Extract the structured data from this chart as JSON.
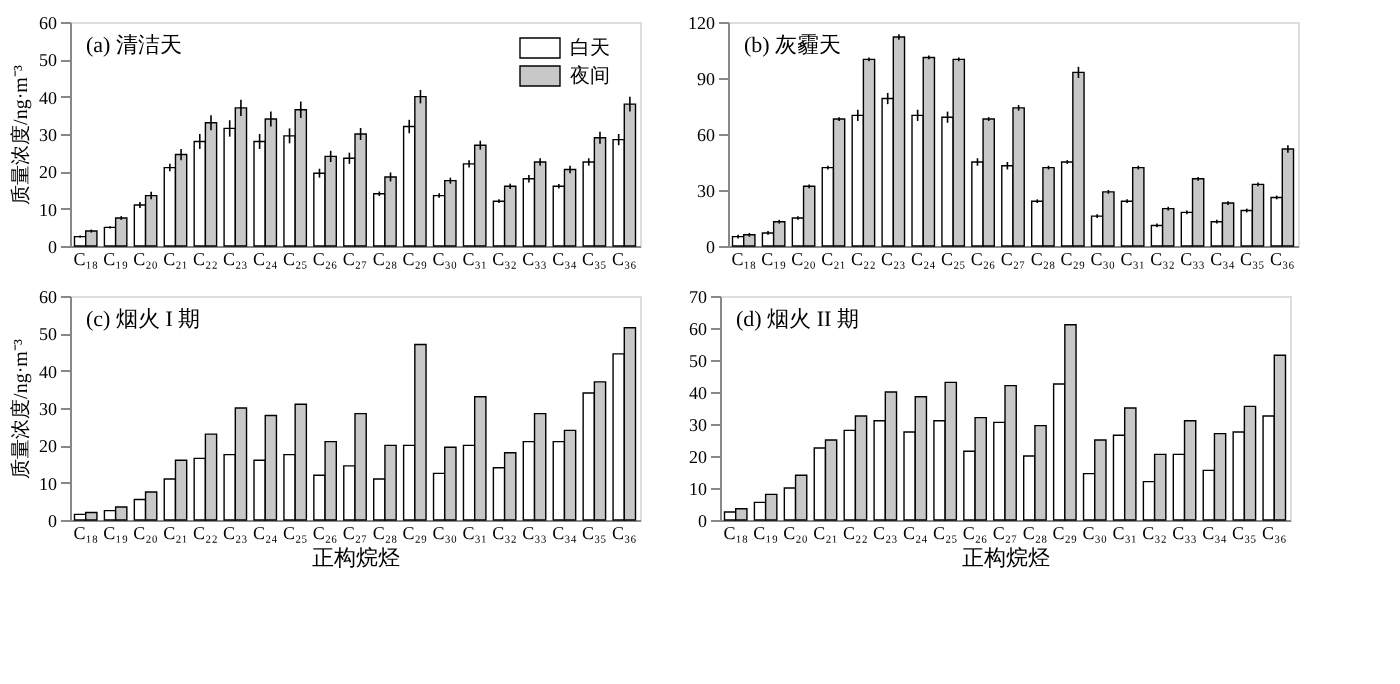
{
  "chart_data": [
    {
      "type": "bar",
      "title": "(a) 清洁天",
      "ylabel": "质量浓度/ng·m⁻³",
      "categories": [
        "C₁₈",
        "C₁₉",
        "C₂₀",
        "C₂₁",
        "C₂₂",
        "C₂₃",
        "C₂₄",
        "C₂₅",
        "C₂₆",
        "C₂₇",
        "C₂₈",
        "C₂₉",
        "C₃₀",
        "C₃₁",
        "C₃₂",
        "C₃₃",
        "C₃₄",
        "C₃₅",
        "C₃₆"
      ],
      "ylim": [
        0,
        60
      ],
      "yticks": [
        0,
        10,
        20,
        30,
        40,
        50,
        60
      ],
      "grid": false,
      "legend": "top right",
      "series": [
        {
          "name": "白天",
          "color": "#ffffff",
          "values": [
            2.5,
            5,
            11,
            21,
            28,
            31.5,
            28,
            29.5,
            19.5,
            23.5,
            14,
            32,
            13.5,
            22,
            12,
            18,
            16,
            22.5,
            28.5
          ],
          "errors": [
            0.3,
            0.3,
            0.8,
            1,
            2,
            2.2,
            2,
            2,
            1.2,
            1.5,
            0.6,
            1.8,
            0.6,
            1,
            0.5,
            1,
            0.6,
            1,
            1.5
          ]
        },
        {
          "name": "夜间",
          "color": "#c8c8c8",
          "values": [
            4,
            7.5,
            13.5,
            24.5,
            33,
            37,
            34,
            36.5,
            24,
            30,
            18.5,
            40,
            17.5,
            27,
            16,
            22.5,
            20.5,
            29,
            38
          ],
          "errors": [
            0.4,
            0.5,
            1,
            1.5,
            2,
            2.2,
            2,
            2.2,
            1.5,
            1.6,
            1.2,
            1.8,
            0.8,
            1.2,
            0.7,
            1,
            1,
            1.6,
            2
          ]
        }
      ]
    },
    {
      "type": "bar",
      "title": "(b) 灰霾天",
      "categories": [
        "C₁₈",
        "C₁₉",
        "C₂₀",
        "C₂₁",
        "C₂₂",
        "C₂₃",
        "C₂₄",
        "C₂₅",
        "C₂₆",
        "C₂₇",
        "C₂₈",
        "C₂₉",
        "C₃₀",
        "C₃₁",
        "C₃₂",
        "C₃₃",
        "C₃₄",
        "C₃₅",
        "C₃₆"
      ],
      "ylim": [
        0,
        120
      ],
      "yticks": [
        0,
        30,
        60,
        90,
        120
      ],
      "grid": false,
      "series": [
        {
          "color": "#ffffff",
          "values": [
            5,
            7,
            15,
            42,
            70,
            79,
            70,
            69,
            45,
            43,
            24,
            45,
            16,
            24,
            11,
            18,
            13,
            19,
            26
          ],
          "errors": [
            1,
            1,
            1,
            1,
            3,
            3,
            3,
            3,
            2,
            2,
            1,
            1,
            1,
            1,
            1,
            1,
            1,
            1,
            1
          ]
        },
        {
          "color": "#c8c8c8",
          "values": [
            6,
            13,
            32,
            68,
            100,
            112,
            101,
            100,
            68,
            74,
            42,
            93,
            29,
            42,
            20,
            36,
            23,
            33,
            52
          ],
          "errors": [
            1,
            1,
            1,
            1,
            1,
            1.5,
            1,
            1,
            1,
            1.5,
            1,
            3,
            1,
            1,
            1,
            1,
            1,
            1,
            2
          ]
        }
      ]
    },
    {
      "type": "bar",
      "title": "(c) 烟火 I 期",
      "ylabel": "质量浓度/ng·m⁻³",
      "xlabel": "正构烷烃",
      "categories": [
        "C₁₈",
        "C₁₉",
        "C₂₀",
        "C₂₁",
        "C₂₂",
        "C₂₃",
        "C₂₄",
        "C₂₅",
        "C₂₆",
        "C₂₇",
        "C₂₈",
        "C₂₉",
        "C₃₀",
        "C₃₁",
        "C₃₂",
        "C₃₃",
        "C₃₄",
        "C₃₅",
        "C₃₆"
      ],
      "ylim": [
        0,
        60
      ],
      "yticks": [
        0,
        10,
        20,
        30,
        40,
        50,
        60
      ],
      "grid": false,
      "series": [
        {
          "color": "#ffffff",
          "values": [
            1.5,
            2.5,
            5.5,
            11,
            16.5,
            17.5,
            16,
            17.5,
            12,
            14.5,
            11,
            20,
            12.5,
            20,
            14,
            21,
            21,
            34,
            44.5
          ]
        },
        {
          "color": "#c8c8c8",
          "values": [
            2,
            3.5,
            7.5,
            16,
            23,
            30,
            28,
            31,
            21,
            28.5,
            20,
            47,
            19.5,
            33,
            18,
            28.5,
            24,
            37,
            51.5
          ]
        }
      ]
    },
    {
      "type": "bar",
      "title": "(d) 烟火 II 期",
      "xlabel": "正构烷烃",
      "categories": [
        "C₁₈",
        "C₁₉",
        "C₂₀",
        "C₂₁",
        "C₂₂",
        "C₂₃",
        "C₂₄",
        "C₂₅",
        "C₂₆",
        "C₂₇",
        "C₂₈",
        "C₂₉",
        "C₃₀",
        "C₃₁",
        "C₃₂",
        "C₃₃",
        "C₃₄",
        "C₃₅",
        "C₃₆"
      ],
      "ylim": [
        0,
        70
      ],
      "yticks": [
        0,
        10,
        20,
        30,
        40,
        50,
        60,
        70
      ],
      "grid": false,
      "series": [
        {
          "color": "#ffffff",
          "values": [
            2.5,
            5.5,
            10,
            22.5,
            28,
            31,
            27.5,
            31,
            21.5,
            30.5,
            20,
            42.5,
            14.5,
            26.5,
            12,
            20.5,
            15.5,
            27.5,
            32.5
          ]
        },
        {
          "color": "#c8c8c8",
          "values": [
            3.5,
            8,
            14,
            25,
            32.5,
            40,
            38.5,
            43,
            32,
            42,
            29.5,
            61,
            25,
            35,
            20.5,
            31,
            27,
            35.5,
            51.5
          ]
        }
      ]
    }
  ]
}
